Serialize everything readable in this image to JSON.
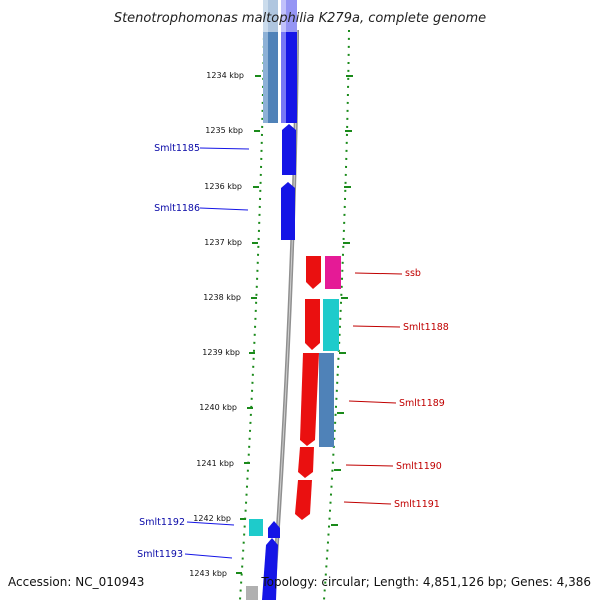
{
  "title": "Stenotrophomonas maltophilia K279a, complete genome",
  "accession": "Accession: NC_010943",
  "topology": "Topology: circular; Length: 4,851,126 bp; Genes: 4,386",
  "colors": {
    "fwd_cds": "#1515e6",
    "rev_cds": "#ea1010",
    "fwd_other": "#4f82b8",
    "cyan_feature": "#1ecbcb",
    "magenta_feature": "#e51a96",
    "tick": "#1a8a1a",
    "backbone": "#8f8f8f",
    "fwd_label": "#0a0aa8",
    "rev_label": "#c00000"
  },
  "kbp_ticks": [
    "1234 kbp",
    "1235 kbp",
    "1236 kbp",
    "1237 kbp",
    "1238 kbp",
    "1239 kbp",
    "1240 kbp",
    "1241 kbp",
    "1242 kbp",
    "1243 kbp"
  ],
  "gene_labels": [
    {
      "text": "Smlt1185",
      "strand": "forward"
    },
    {
      "text": "Smlt1186",
      "strand": "forward"
    },
    {
      "text": "ssb",
      "strand": "reverse"
    },
    {
      "text": "Smlt1188",
      "strand": "reverse"
    },
    {
      "text": "Smlt1189",
      "strand": "reverse"
    },
    {
      "text": "Smlt1190",
      "strand": "reverse"
    },
    {
      "text": "Smlt1191",
      "strand": "reverse"
    },
    {
      "text": "Smlt1192",
      "strand": "forward"
    },
    {
      "text": "Smlt1193",
      "strand": "forward"
    }
  ]
}
